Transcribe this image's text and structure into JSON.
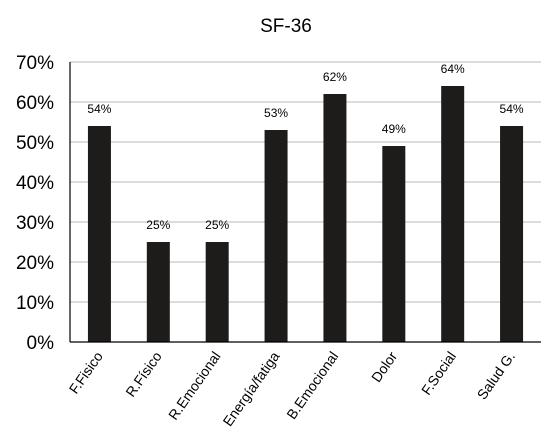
{
  "chart_data": {
    "type": "bar",
    "title": "SF-36",
    "xlabel": "",
    "ylabel": "",
    "categories": [
      "F.Fisico",
      "R.Físico",
      "R.Emocional",
      "Energía/fatiga",
      "B.Emocional",
      "Dolor",
      "F.Social",
      "Salud G."
    ],
    "values": [
      54,
      25,
      25,
      53,
      62,
      49,
      64,
      54
    ],
    "data_labels": [
      "54%",
      "25%",
      "25%",
      "53%",
      "62%",
      "49%",
      "64%",
      "54%"
    ],
    "ylim": [
      0,
      70
    ],
    "yticks": [
      0,
      10,
      20,
      30,
      40,
      50,
      60,
      70
    ],
    "ytick_labels": [
      "0%",
      "10%",
      "20%",
      "30%",
      "40%",
      "50%",
      "60%",
      "70%"
    ],
    "grid": true,
    "legend": "none",
    "bar_color": "#1e1b1b",
    "grid_color": "#b8b8b8"
  }
}
